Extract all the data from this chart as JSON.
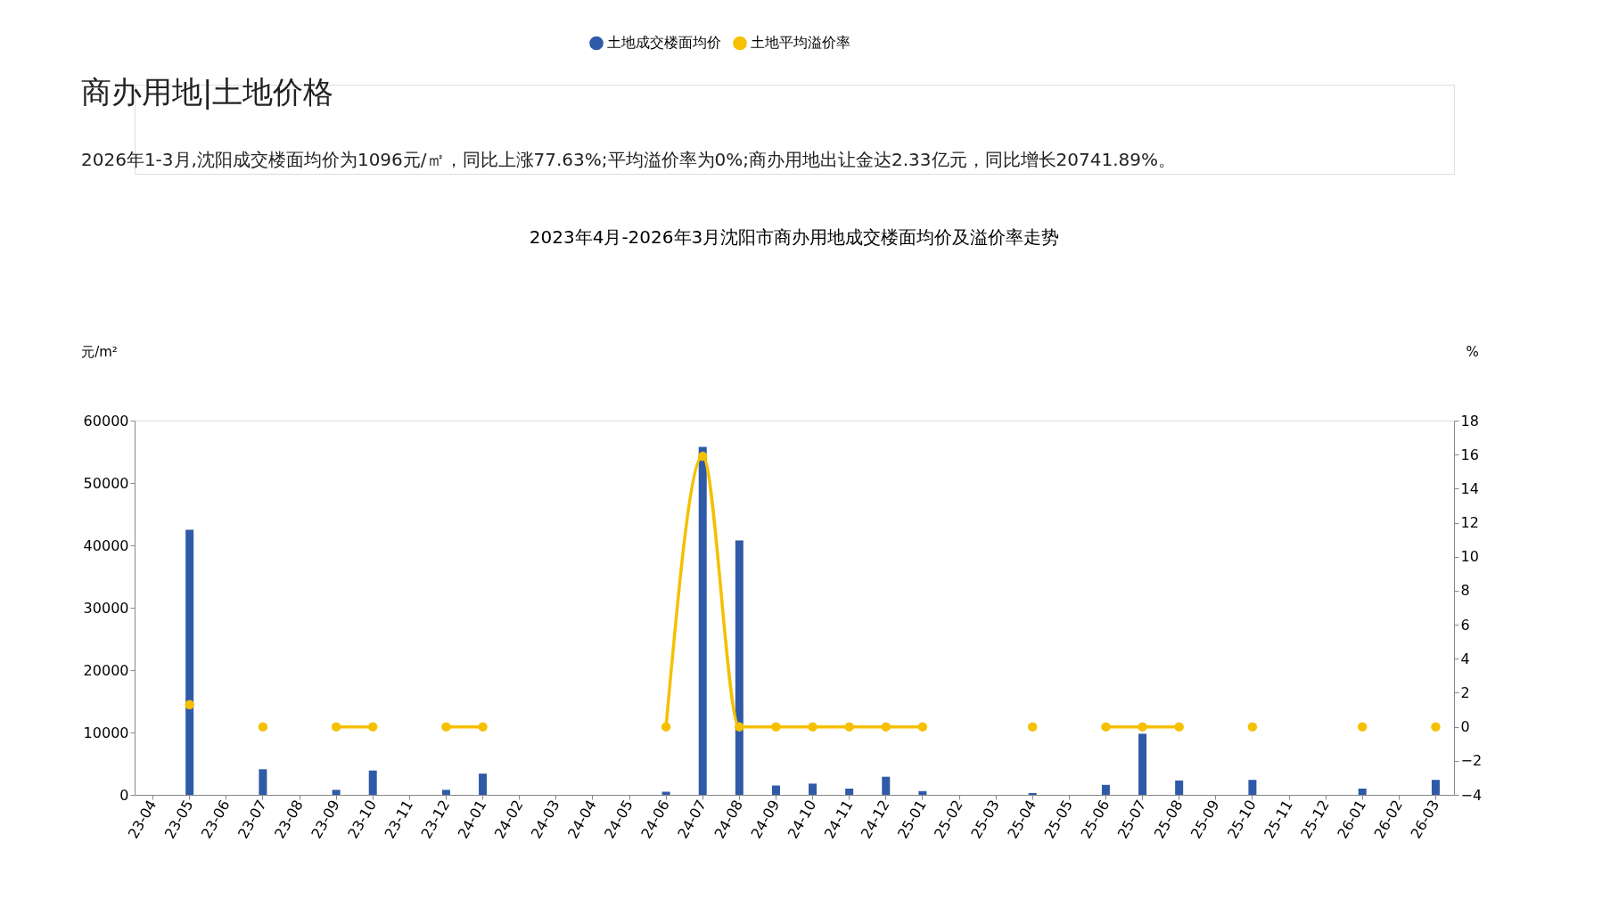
{
  "chart_data": {
    "type": "bar",
    "title": "2023年4月-2026年3月沈阳市商办用地成交楼面均价及溢价率走势",
    "annotations": [
      "商办用地|土地价格",
      "2026年1-3月,沈阳成交楼面均价为1096元/㎡，同比上涨77.63%;平均溢价率为0%;商办用地出让金达2.33亿元，同比增长20741.89%。"
    ],
    "categories": [
      "23-04",
      "23-05",
      "23-06",
      "23-07",
      "23-08",
      "23-09",
      "23-10",
      "23-11",
      "23-12",
      "24-01",
      "24-02",
      "24-03",
      "24-04",
      "24-05",
      "24-06",
      "24-07",
      "24-08",
      "24-09",
      "24-10",
      "24-11",
      "24-12",
      "25-01",
      "25-02",
      "25-03",
      "25-04",
      "25-05",
      "25-06",
      "25-07",
      "25-08",
      "25-09",
      "25-10",
      "25-11",
      "25-12",
      "26-01",
      "26-02",
      "26-03"
    ],
    "ylabel": "元/m²",
    "y2label": "%",
    "ylim": [
      0,
      60000
    ],
    "yticks": [
      0,
      10000,
      20000,
      30000,
      40000,
      50000,
      60000
    ],
    "y2lim": [
      -4,
      18
    ],
    "y2ticks": [
      -4,
      -2,
      0,
      2,
      4,
      6,
      8,
      10,
      12,
      14,
      16,
      18
    ],
    "legend": "top",
    "grid": false,
    "series": [
      {
        "name": "土地成交楼面均价",
        "color": "#2f5aa8",
        "values": [
          null,
          42500,
          null,
          4100,
          null,
          800,
          3900,
          null,
          800,
          3400,
          null,
          null,
          null,
          null,
          500,
          55800,
          40800,
          1500,
          1800,
          1000,
          2900,
          600,
          null,
          null,
          300,
          null,
          1600,
          9800,
          2300,
          null,
          2400,
          null,
          null,
          1000,
          null,
          2400
        ]
      },
      {
        "name": "土地平均溢价率",
        "type": "line",
        "axis": "y2",
        "color": "#f5c000",
        "marker": "circle",
        "values": [
          null,
          1.3,
          null,
          0,
          null,
          0,
          0,
          null,
          0,
          0,
          null,
          null,
          null,
          null,
          0,
          15.9,
          0,
          0,
          0,
          0,
          0,
          0,
          null,
          null,
          0,
          null,
          0,
          0,
          0,
          null,
          0,
          null,
          null,
          0,
          null,
          0
        ]
      }
    ]
  }
}
